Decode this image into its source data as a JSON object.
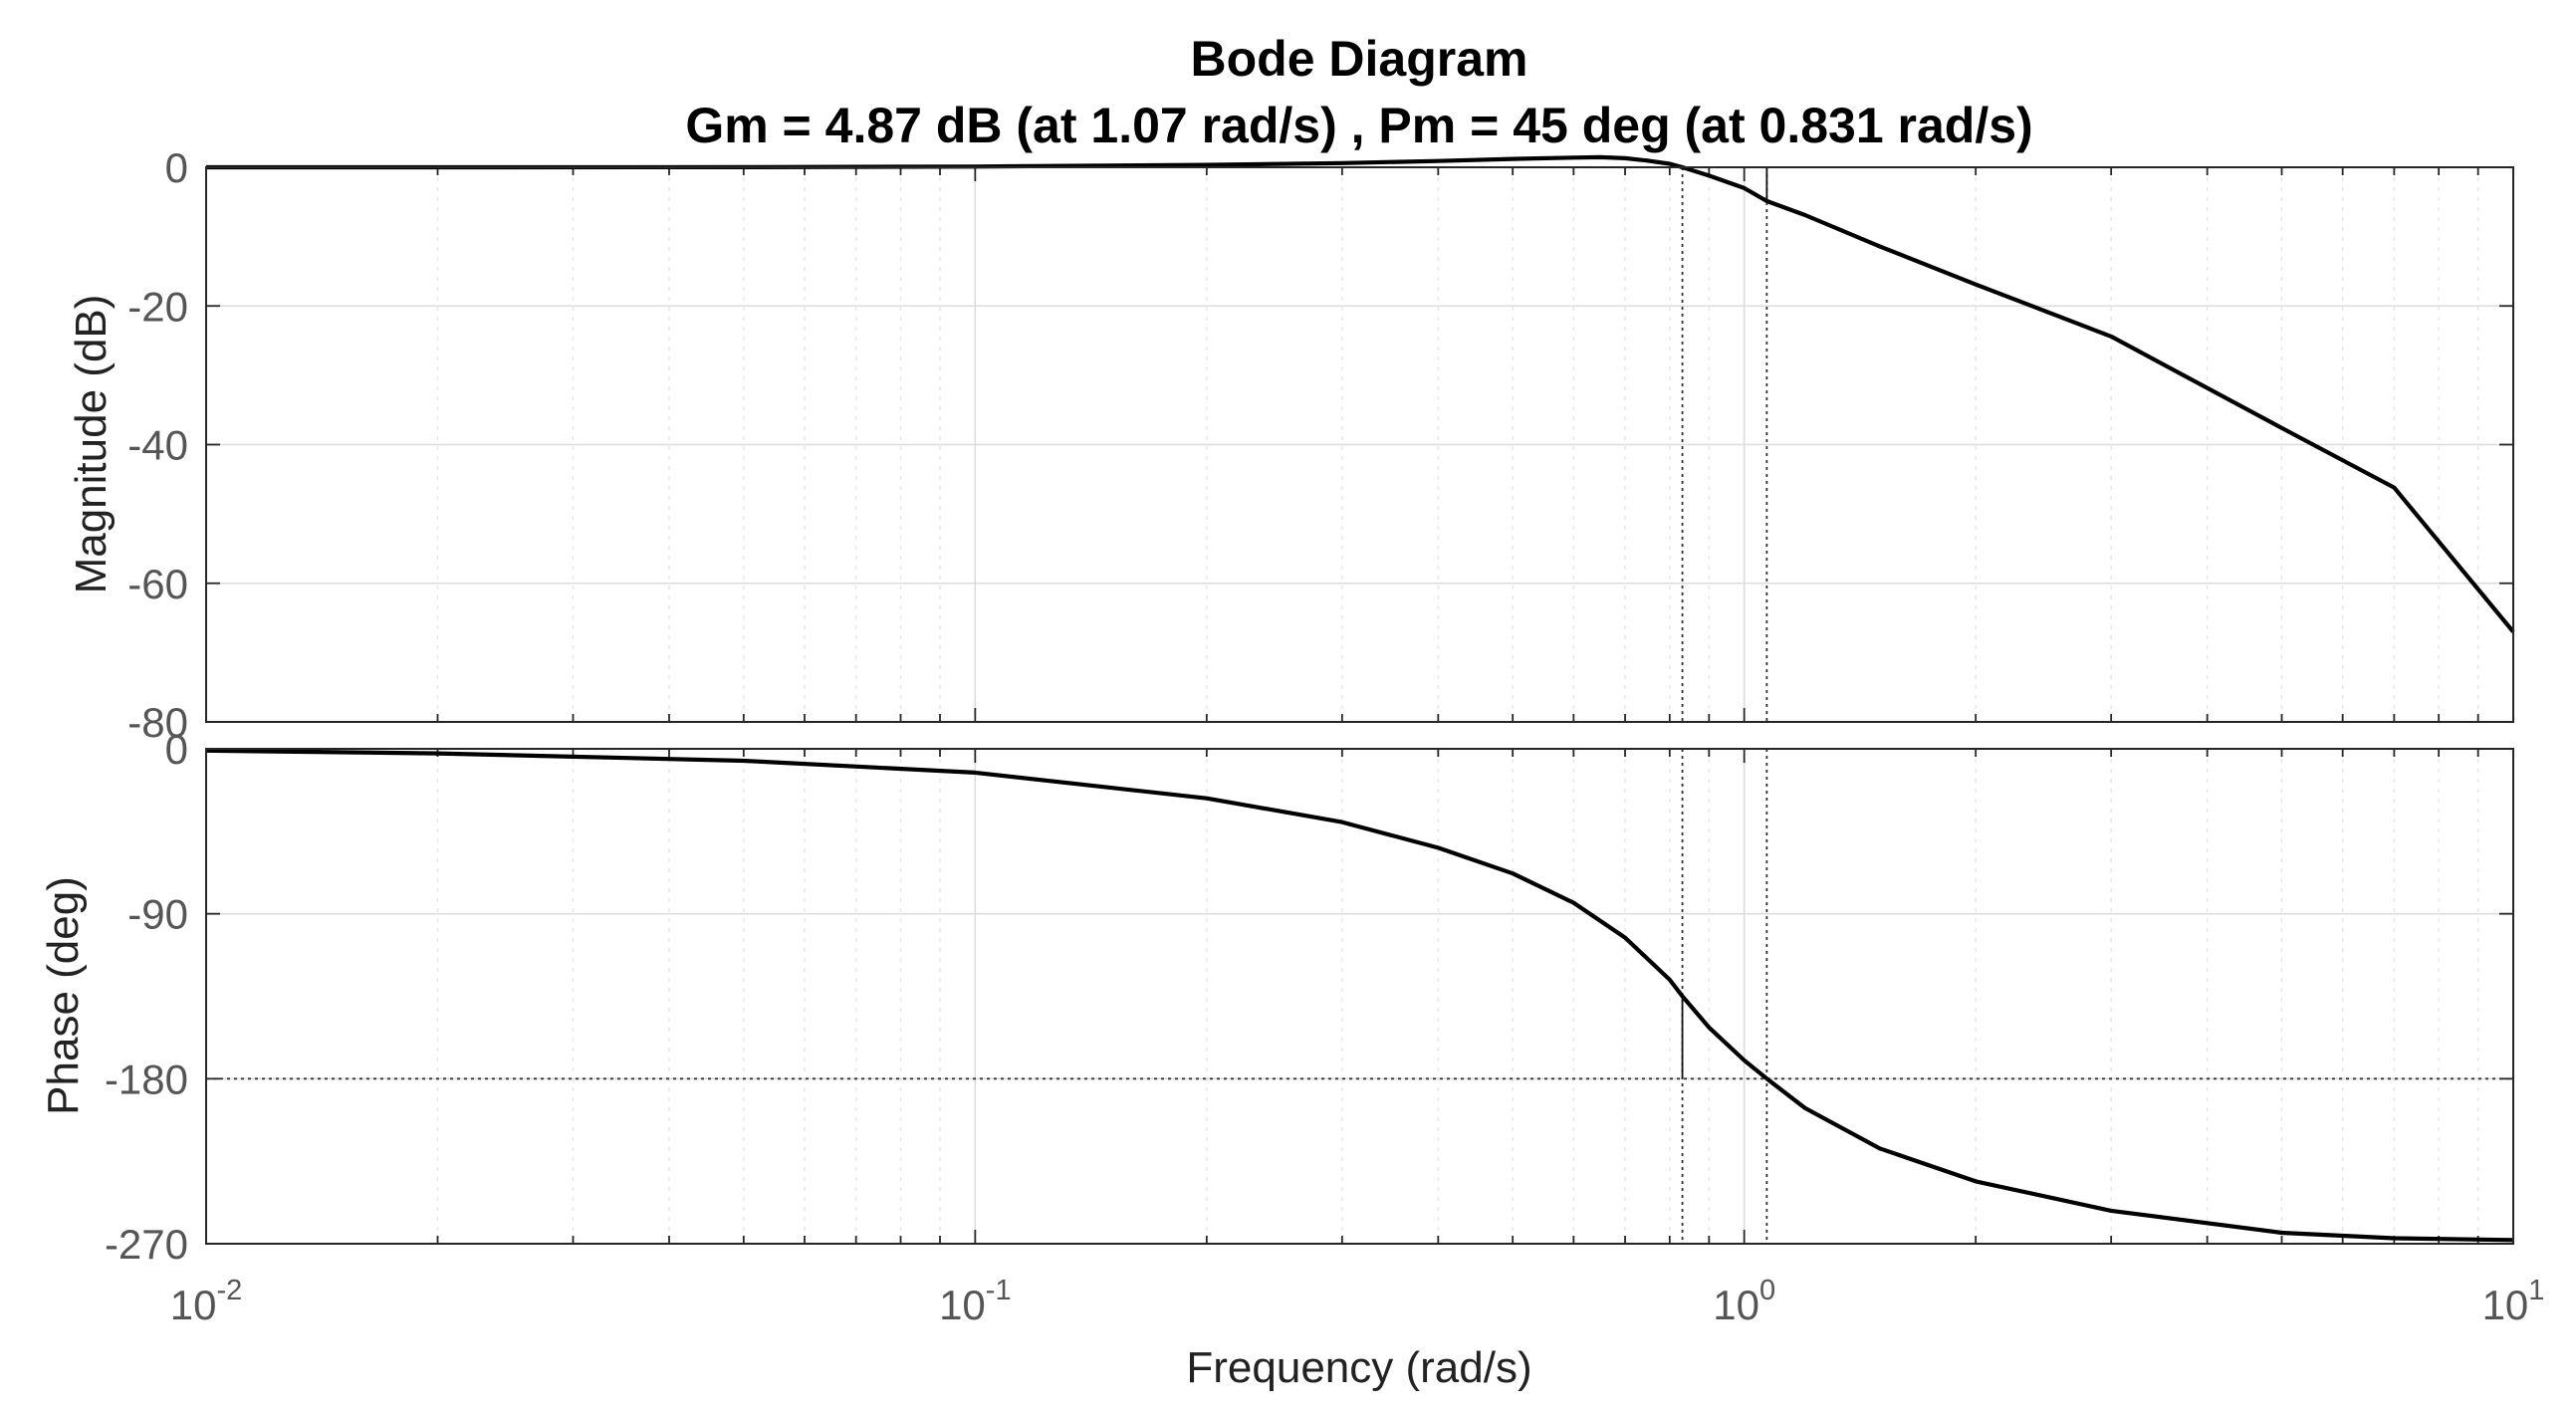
{
  "chart_data": {
    "type": "line",
    "title": "Bode Diagram",
    "subtitle": "Gm = 4.87 dB (at 1.07 rad/s) ,  Pm = 45 deg (at 0.831 rad/s)",
    "xlabel": "Frequency  (rad/s)",
    "xscale": "log",
    "xlim": [
      0.01,
      10
    ],
    "x_ticks": [
      {
        "base": "10",
        "exp": "-2",
        "value": 0.01
      },
      {
        "base": "10",
        "exp": "-1",
        "value": 0.1
      },
      {
        "base": "10",
        "exp": "0",
        "value": 1
      },
      {
        "base": "10",
        "exp": "1",
        "value": 10
      }
    ],
    "grid": true,
    "panels": [
      {
        "name": "magnitude",
        "ylabel": "Magnitude (dB)",
        "ylim": [
          -80,
          0
        ],
        "yticks": [
          0,
          -20,
          -40,
          -60,
          -80
        ],
        "ytick_labels": [
          "0",
          "-20",
          "-40",
          "-60",
          "-80"
        ],
        "series": [
          {
            "name": "magnitude",
            "x": [
              0.01,
              0.02,
              0.05,
              0.1,
              0.2,
              0.3,
              0.4,
              0.5,
              0.6,
              0.65,
              0.7,
              0.75,
              0.8,
              0.831,
              0.9,
              1.0,
              1.07,
              1.2,
              1.5,
              2,
              3,
              5,
              7,
              10
            ],
            "values": [
              0,
              0,
              0.02,
              0.1,
              0.35,
              0.6,
              0.9,
              1.2,
              1.4,
              1.45,
              1.3,
              0.95,
              0.5,
              0,
              -1.2,
              -3.0,
              -4.87,
              -6.9,
              -11.4,
              -16.9,
              -24.4,
              -37.6,
              -46.2,
              -67
            ]
          }
        ],
        "reference_line": {
          "value": 0,
          "style": "dotted"
        }
      },
      {
        "name": "phase",
        "ylabel": "Phase (deg)",
        "ylim": [
          -270,
          0
        ],
        "yticks": [
          0,
          -90,
          -180,
          -270
        ],
        "ytick_labels": [
          "0",
          "-90",
          "-180",
          "-270"
        ],
        "series": [
          {
            "name": "phase",
            "x": [
              0.01,
              0.02,
              0.05,
              0.1,
              0.2,
              0.3,
              0.4,
              0.5,
              0.6,
              0.7,
              0.8,
              0.831,
              0.9,
              1.0,
              1.07,
              1.2,
              1.5,
              2,
              3,
              5,
              7,
              10
            ],
            "values": [
              -1,
              -2.5,
              -6.5,
              -13,
              -27,
              -40,
              -54,
              -68,
              -84,
              -103,
              -126,
              -135,
              -152,
              -170,
              -180,
              -196,
              -218,
              -236,
              -252,
              -264,
              -267,
              -268
            ]
          }
        ],
        "reference_line": {
          "value": -180,
          "style": "dotted"
        }
      }
    ],
    "margins": {
      "gain_margin_db": 4.87,
      "gain_crossover_phase_freq": 1.07,
      "phase_margin_deg": 45,
      "phase_crossover_freq": 0.831
    }
  }
}
